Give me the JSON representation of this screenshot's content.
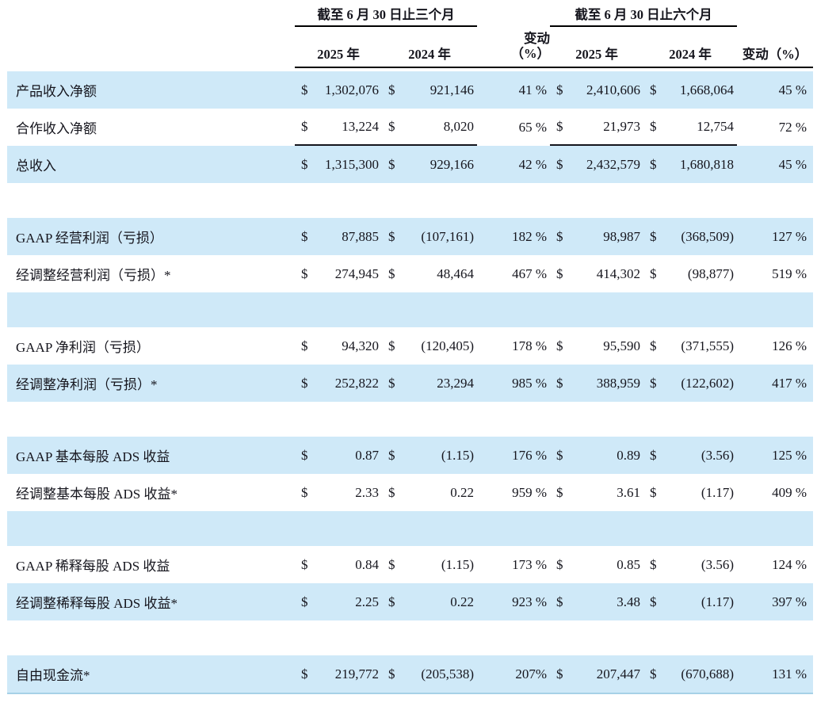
{
  "currency_symbol": "$",
  "colors": {
    "row_highlight": "#cfe9f8",
    "text": "#15151d",
    "rule": "#000000"
  },
  "header": {
    "group_3m": "截至 6 月 30 日止三个月",
    "group_6m": "截至 6 月 30 日止六个月",
    "year_2025": "2025 年",
    "year_2024": "2024 年",
    "change_line1": "变动",
    "change_line2": "（%）",
    "change_6m": "变动（%）"
  },
  "rows": [
    {
      "type": "data",
      "bg": "blue",
      "label": "产品收入净额",
      "q2025": "1,302,076",
      "q2024": "921,146",
      "q_change": "41 %",
      "h2025": "2,410,606",
      "h2024": "1,668,064",
      "h_change": "45 %"
    },
    {
      "type": "data",
      "bg": "white",
      "label": "合作收入净额",
      "q2025": "13,224",
      "q2024": "8,020",
      "q_change": "65 %",
      "h2025": "21,973",
      "h2024": "12,754",
      "h_change": "72 %",
      "total_rule": true
    },
    {
      "type": "data",
      "bg": "blue",
      "label": "总收入",
      "q2025": "1,315,300",
      "q2024": "929,166",
      "q_change": "42 %",
      "h2025": "2,432,579",
      "h2024": "1,680,818",
      "h_change": "45 %"
    },
    {
      "type": "spacer",
      "bg": "white"
    },
    {
      "type": "data",
      "bg": "blue",
      "label": "GAAP 经营利润（亏损）",
      "q2025": "87,885",
      "q2024": "(107,161)",
      "q_change": "182 %",
      "h2025": "98,987",
      "h2024": "(368,509)",
      "h_change": "127 %"
    },
    {
      "type": "data",
      "bg": "white",
      "label": "经调整经营利润（亏损）*",
      "q2025": "274,945",
      "q2024": "48,464",
      "q_change": "467 %",
      "h2025": "414,302",
      "h2024": "(98,877)",
      "h_change": "519 %"
    },
    {
      "type": "spacer",
      "bg": "blue"
    },
    {
      "type": "data",
      "bg": "white",
      "label": "GAAP 净利润（亏损）",
      "q2025": "94,320",
      "q2024": "(120,405)",
      "q_change": "178 %",
      "h2025": "95,590",
      "h2024": "(371,555)",
      "h_change": "126 %"
    },
    {
      "type": "data",
      "bg": "blue",
      "label": "经调整净利润（亏损）*",
      "q2025": "252,822",
      "q2024": "23,294",
      "q_change": "985 %",
      "h2025": "388,959",
      "h2024": "(122,602)",
      "h_change": "417 %"
    },
    {
      "type": "spacer",
      "bg": "white"
    },
    {
      "type": "data",
      "bg": "blue",
      "label": "GAAP 基本每股 ADS 收益",
      "q2025": "0.87",
      "q2024": "(1.15)",
      "q_change": "176 %",
      "h2025": "0.89",
      "h2024": "(3.56)",
      "h_change": "125 %"
    },
    {
      "type": "data",
      "bg": "white",
      "label": "经调整基本每股 ADS 收益*",
      "q2025": "2.33",
      "q2024": "0.22",
      "q_change": "959 %",
      "h2025": "3.61",
      "h2024": "(1.17)",
      "h_change": "409 %"
    },
    {
      "type": "spacer",
      "bg": "blue"
    },
    {
      "type": "data",
      "bg": "white",
      "label": "GAAP 稀释每股 ADS 收益",
      "q2025": "0.84",
      "q2024": "(1.15)",
      "q_change": "173 %",
      "h2025": "0.85",
      "h2024": "(3.56)",
      "h_change": "124 %"
    },
    {
      "type": "data",
      "bg": "blue",
      "label": "经调整稀释每股 ADS 收益*",
      "q2025": "2.25",
      "q2024": "0.22",
      "q_change": "923 %",
      "h2025": "3.48",
      "h2024": "(1.17)",
      "h_change": "397 %"
    },
    {
      "type": "spacer",
      "bg": "white"
    },
    {
      "type": "data",
      "bg": "blue",
      "label": "自由现金流*",
      "q2025": "219,772",
      "q2024": "(205,538)",
      "q_change": "207%",
      "h2025": "207,447",
      "h2024": "(670,688)",
      "h_change": "131 %",
      "last": true
    }
  ]
}
